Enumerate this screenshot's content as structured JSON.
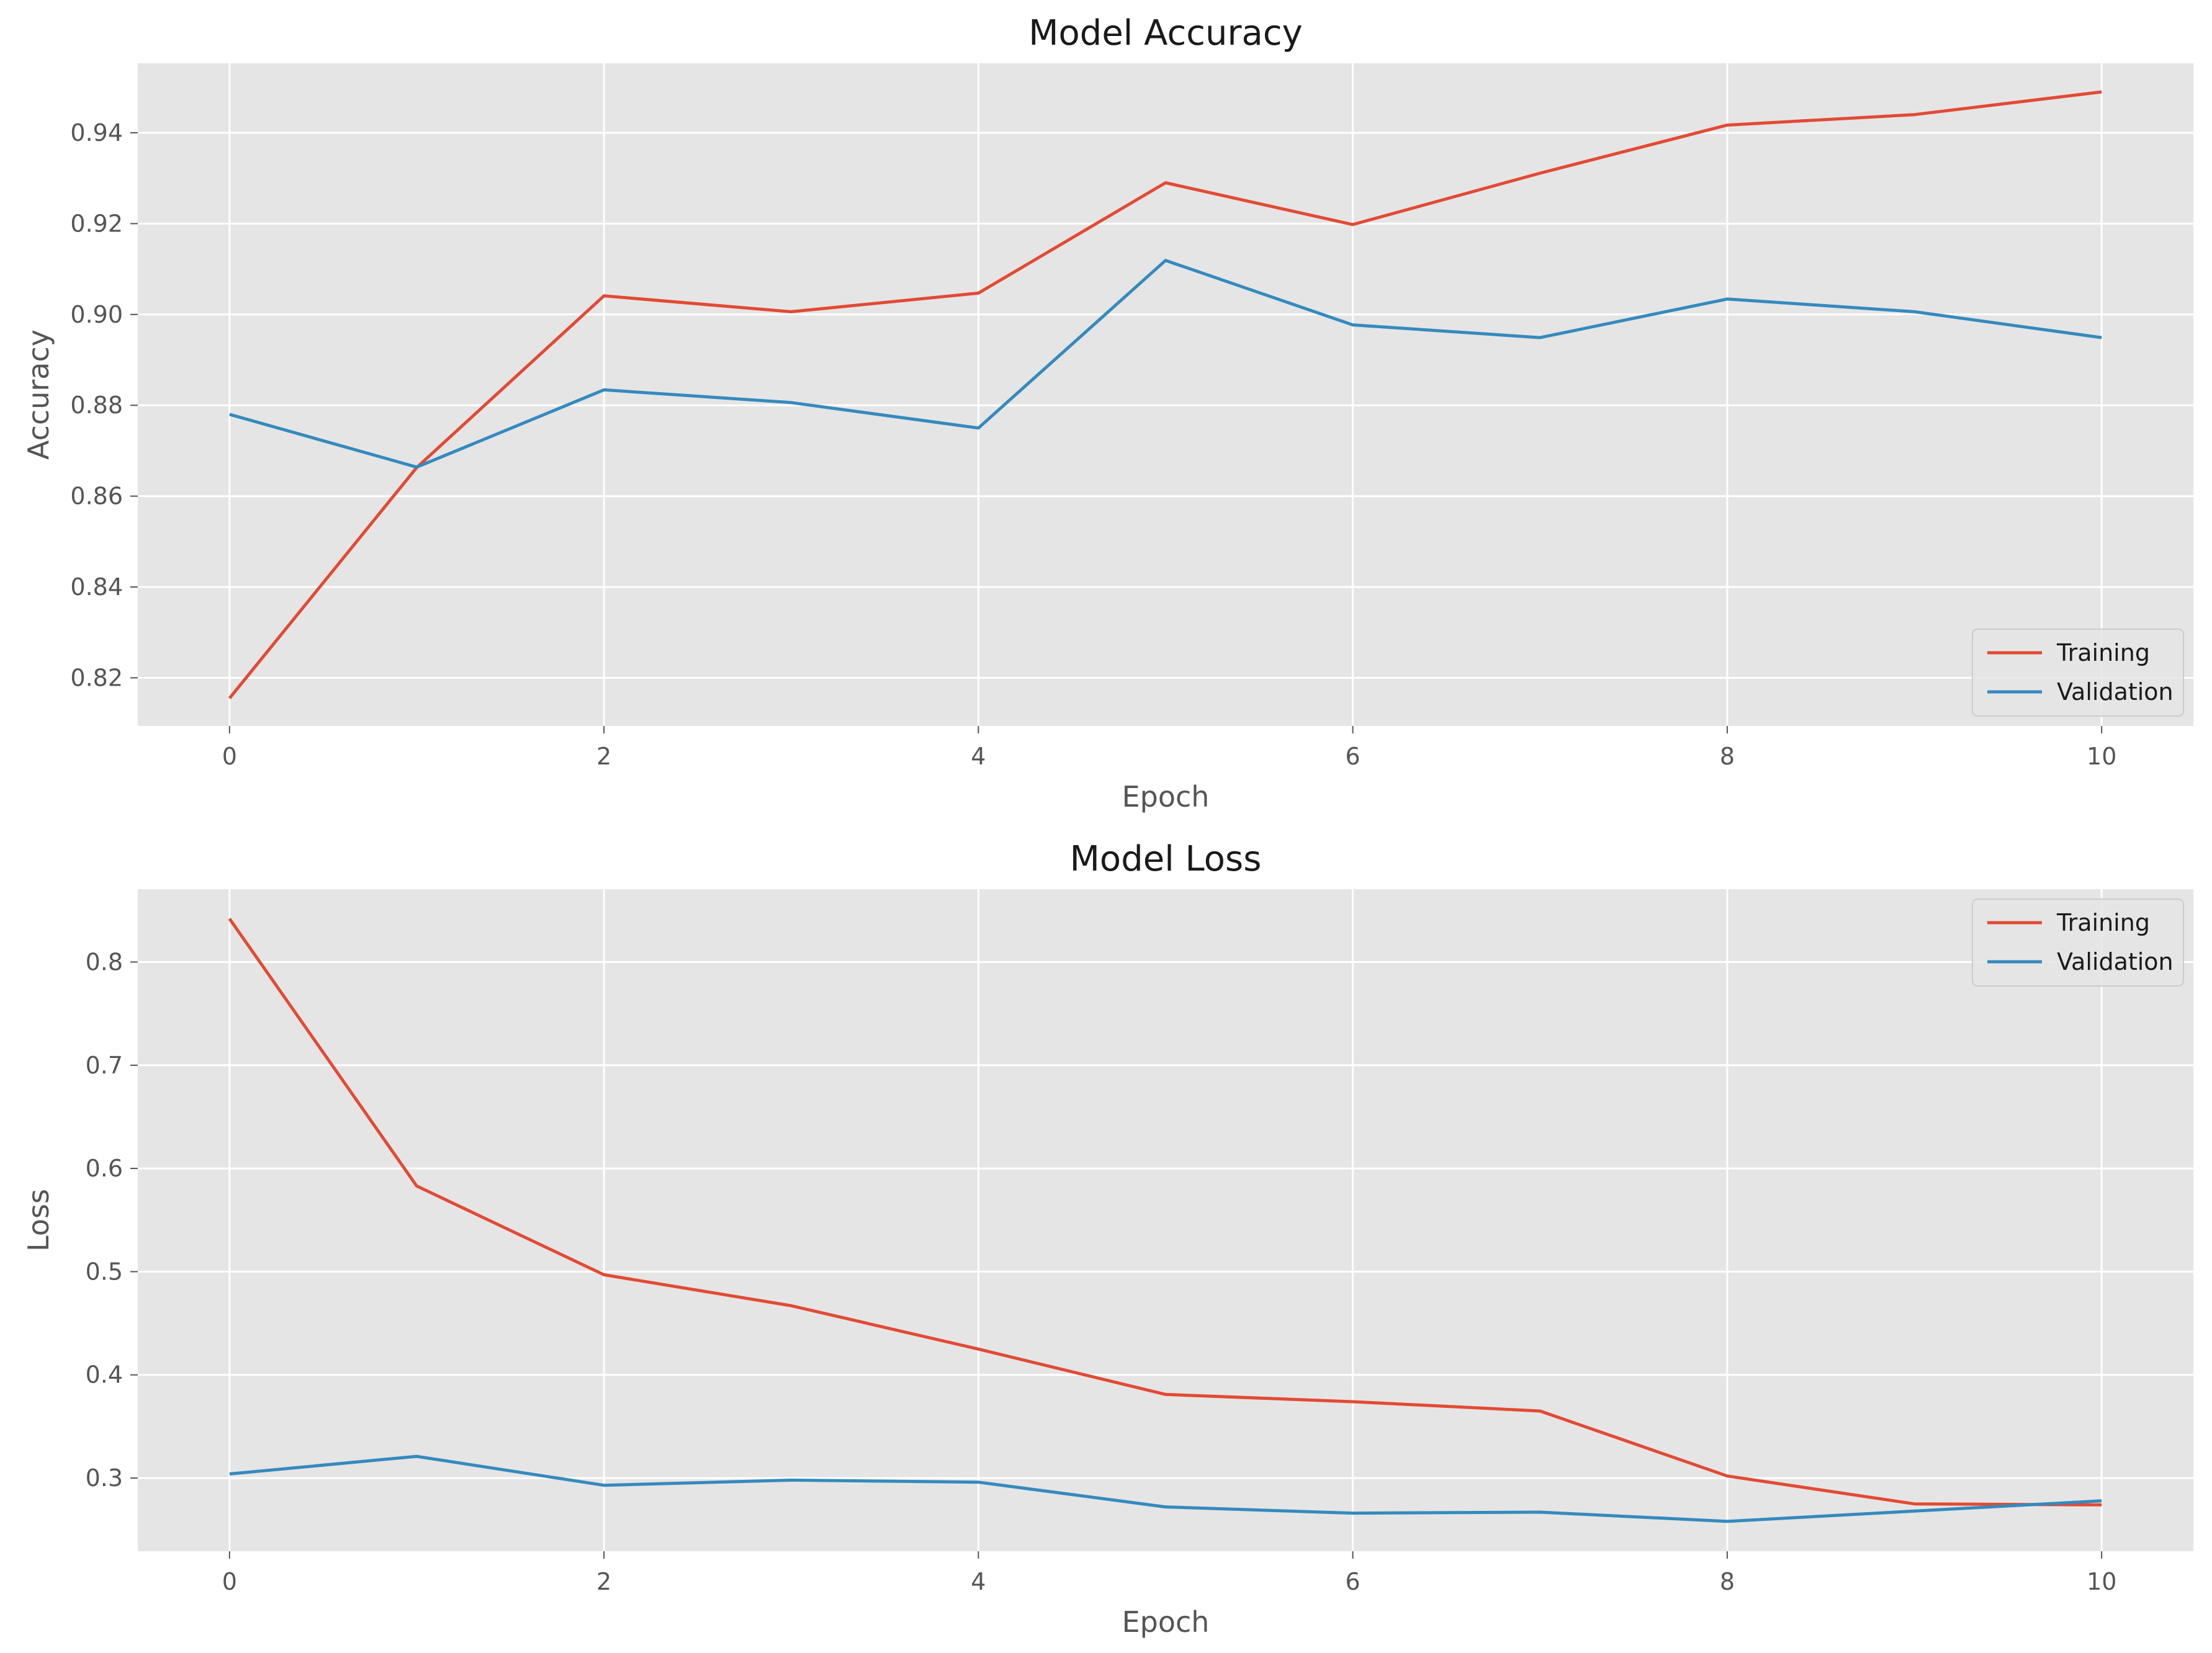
{
  "chart_data": [
    {
      "type": "line",
      "title": "Model Accuracy",
      "xlabel": "Epoch",
      "ylabel": "Accuracy",
      "x": [
        0,
        1,
        2,
        3,
        4,
        5,
        6,
        7,
        8,
        9,
        10
      ],
      "xlim": [
        -0.49,
        10.49
      ],
      "ylim": [
        0.8094,
        0.9553
      ],
      "xticks": [
        0,
        2,
        4,
        6,
        8,
        10
      ],
      "xtick_labels": [
        "0",
        "2",
        "4",
        "6",
        "8",
        "10"
      ],
      "yticks": [
        0.82,
        0.84,
        0.86,
        0.88,
        0.9,
        0.92,
        0.94
      ],
      "ytick_labels": [
        "0.82",
        "0.84",
        "0.86",
        "0.88",
        "0.90",
        "0.92",
        "0.94"
      ],
      "grid": true,
      "legend_position": "lower-right",
      "series": [
        {
          "name": "Training",
          "color": "#E24A33",
          "values": [
            0.8155,
            0.8663,
            0.9041,
            0.9006,
            0.9047,
            0.929,
            0.9198,
            0.9311,
            0.9417,
            0.944,
            0.949
          ]
        },
        {
          "name": "Validation",
          "color": "#348ABD",
          "values": [
            0.878,
            0.8664,
            0.8834,
            0.8806,
            0.875,
            0.9119,
            0.8977,
            0.8949,
            0.9034,
            0.9006,
            0.8949
          ]
        }
      ]
    },
    {
      "type": "line",
      "title": "Model Loss",
      "xlabel": "Epoch",
      "ylabel": "Loss",
      "x": [
        0,
        1,
        2,
        3,
        4,
        5,
        6,
        7,
        8,
        9,
        10
      ],
      "xlim": [
        -0.49,
        10.49
      ],
      "ylim": [
        0.2291,
        0.8706
      ],
      "xticks": [
        0,
        2,
        4,
        6,
        8,
        10
      ],
      "xtick_labels": [
        "0",
        "2",
        "4",
        "6",
        "8",
        "10"
      ],
      "yticks": [
        0.3,
        0.4,
        0.5,
        0.6,
        0.7,
        0.8
      ],
      "ytick_labels": [
        "0.3",
        "0.4",
        "0.5",
        "0.6",
        "0.7",
        "0.8"
      ],
      "grid": true,
      "legend_position": "upper-right",
      "series": [
        {
          "name": "Training",
          "color": "#E24A33",
          "values": [
            0.842,
            0.583,
            0.497,
            0.467,
            0.425,
            0.381,
            0.374,
            0.365,
            0.302,
            0.275,
            0.274
          ]
        },
        {
          "name": "Validation",
          "color": "#348ABD",
          "values": [
            0.304,
            0.321,
            0.293,
            0.298,
            0.296,
            0.272,
            0.266,
            0.267,
            0.258,
            0.268,
            0.278
          ]
        }
      ]
    }
  ],
  "style": {
    "plot_background": "#E5E5E5",
    "grid_color": "#FFFFFF",
    "text_color": "#555555",
    "title_color": "#1A1A1A"
  }
}
